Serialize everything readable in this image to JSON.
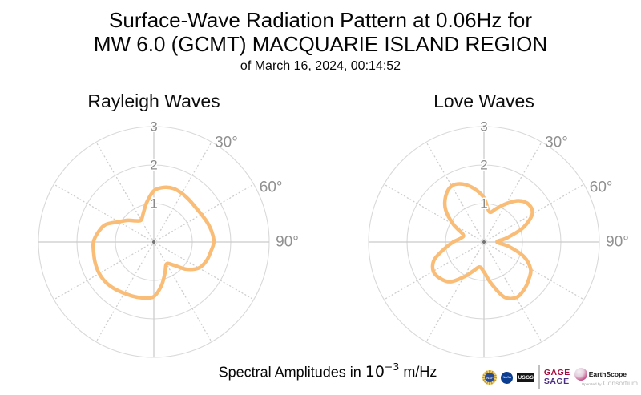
{
  "title": {
    "line1": "Surface-Wave Radiation Pattern at 0.06Hz for",
    "line2": "MW 6.0 (GCMT) MACQUARIE ISLAND REGION",
    "line3": "of March 16, 2024, 00:14:52"
  },
  "caption": {
    "prefix": "Spectral Amplitudes in",
    "base": "10",
    "exponent": "−3",
    "suffix": "m/Hz"
  },
  "polar_common": {
    "r_ticks": [
      1,
      2,
      3
    ],
    "r_max": 3,
    "theta_zero": "up",
    "theta_direction": "clockwise",
    "spoke_step_deg": 30,
    "angle_labels": [
      {
        "deg": 30,
        "text": "30°"
      },
      {
        "deg": 60,
        "text": "60°"
      },
      {
        "deg": 90,
        "text": "90°"
      }
    ]
  },
  "chart_data": [
    {
      "type": "line",
      "subtype": "polar-line",
      "name": "rayleigh",
      "title": "Rayleigh Waves",
      "r_unit": "10^-3 m/Hz",
      "r_ticks": [
        1,
        2,
        3
      ],
      "r_max": 3,
      "theta_deg": [
        0,
        10,
        20,
        30,
        40,
        50,
        60,
        70,
        80,
        90,
        100,
        110,
        120,
        130,
        140,
        150,
        160,
        170,
        180,
        190,
        200,
        210,
        220,
        230,
        240,
        250,
        260,
        270,
        280,
        290,
        300,
        310,
        320,
        330,
        340,
        350
      ],
      "r": [
        1.33,
        1.44,
        1.48,
        1.46,
        1.43,
        1.41,
        1.43,
        1.48,
        1.53,
        1.56,
        1.5,
        1.45,
        1.35,
        1.1,
        0.78,
        0.66,
        0.85,
        1.15,
        1.42,
        1.48,
        1.51,
        1.54,
        1.59,
        1.63,
        1.64,
        1.62,
        1.59,
        1.57,
        1.47,
        1.33,
        1.05,
        0.88,
        0.72,
        0.66,
        0.8,
        1.05
      ]
    },
    {
      "type": "line",
      "subtype": "polar-line",
      "name": "love",
      "title": "Love Waves",
      "r_unit": "10^-3 m/Hz",
      "r_ticks": [
        1,
        2,
        3
      ],
      "r_max": 3,
      "theta_deg": [
        0,
        10,
        20,
        30,
        40,
        50,
        60,
        70,
        80,
        90,
        100,
        110,
        120,
        130,
        140,
        150,
        160,
        170,
        180,
        190,
        200,
        210,
        220,
        230,
        240,
        250,
        260,
        270,
        280,
        290,
        300,
        310,
        320,
        330,
        340,
        350
      ],
      "r": [
        1.15,
        0.8,
        0.92,
        1.15,
        1.4,
        1.52,
        1.45,
        1.08,
        0.6,
        0.34,
        0.65,
        1.1,
        1.4,
        1.52,
        1.62,
        1.67,
        1.52,
        1.1,
        0.78,
        0.66,
        0.8,
        1.05,
        1.35,
        1.48,
        1.52,
        1.38,
        1.05,
        0.8,
        0.6,
        0.58,
        0.92,
        1.3,
        1.55,
        1.68,
        1.6,
        1.4
      ]
    }
  ],
  "colors": {
    "curve": "#F9BD77",
    "grid_circle": "#D9D9D9",
    "axis_line": "#C9C9C9",
    "dotted_spoke": "#CDCDCD",
    "tick_label": "#8A8A8A",
    "angle_label": "#909090",
    "center_dot": "#737373",
    "gage_red": "#A6093D",
    "sage_purple": "#4B2E83",
    "nsf_gold": "#C79A28",
    "nasa_blue": "#0B3D91",
    "usgs_black": "#151515"
  },
  "logos": {
    "nsf": "NSF",
    "nasa": "NASA",
    "usgs": "USGS",
    "gage": "GAGE",
    "sage": "SAGE",
    "operated_by": "Operated by",
    "earthscope": "EarthScope",
    "consortium": "Consortium"
  }
}
